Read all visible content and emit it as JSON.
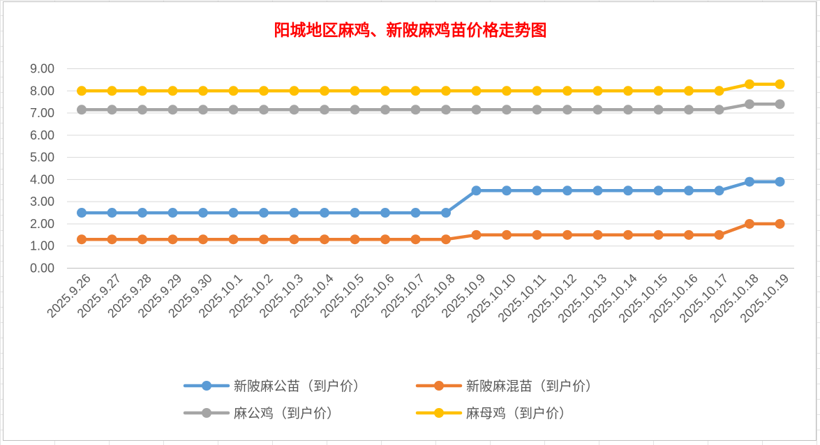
{
  "chart_data": {
    "type": "line",
    "title": "阳城地区麻鸡、新陂麻鸡苗价格走势图",
    "title_color": "#ff0000",
    "categories": [
      "2025.9.26",
      "2025.9.27",
      "2025.9.28",
      "2025.9.29",
      "2025.9.30",
      "2025.10.1",
      "2025.10.2",
      "2025.10.3",
      "2025.10.4",
      "2025.10.5",
      "2025.10.6",
      "2025.10.7",
      "2025.10.8",
      "2025.10.9",
      "2025.10.10",
      "2025.10.11",
      "2025.10.12",
      "2025.10.13",
      "2025.10.14",
      "2025.10.15",
      "2025.10.16",
      "2025.10.17",
      "2025.10.18",
      "2025.10.19"
    ],
    "series": [
      {
        "name": "新陂麻公苗（到户价）",
        "color": "#5b9bd5",
        "values": [
          2.5,
          2.5,
          2.5,
          2.5,
          2.5,
          2.5,
          2.5,
          2.5,
          2.5,
          2.5,
          2.5,
          2.5,
          2.5,
          3.5,
          3.5,
          3.5,
          3.5,
          3.5,
          3.5,
          3.5,
          3.5,
          3.5,
          3.9,
          3.9
        ]
      },
      {
        "name": "新陂麻混苗（到户价）",
        "color": "#ed7d31",
        "values": [
          1.3,
          1.3,
          1.3,
          1.3,
          1.3,
          1.3,
          1.3,
          1.3,
          1.3,
          1.3,
          1.3,
          1.3,
          1.3,
          1.5,
          1.5,
          1.5,
          1.5,
          1.5,
          1.5,
          1.5,
          1.5,
          1.5,
          2.0,
          2.0
        ]
      },
      {
        "name": "麻公鸡（到户价）",
        "color": "#a5a5a5",
        "values": [
          7.15,
          7.15,
          7.15,
          7.15,
          7.15,
          7.15,
          7.15,
          7.15,
          7.15,
          7.15,
          7.15,
          7.15,
          7.15,
          7.15,
          7.15,
          7.15,
          7.15,
          7.15,
          7.15,
          7.15,
          7.15,
          7.15,
          7.4,
          7.4
        ]
      },
      {
        "name": "麻母鸡（到户价）",
        "color": "#ffc000",
        "values": [
          8.0,
          8.0,
          8.0,
          8.0,
          8.0,
          8.0,
          8.0,
          8.0,
          8.0,
          8.0,
          8.0,
          8.0,
          8.0,
          8.0,
          8.0,
          8.0,
          8.0,
          8.0,
          8.0,
          8.0,
          8.0,
          8.0,
          8.3,
          8.3
        ]
      }
    ],
    "y_ticks": [
      "0.00",
      "1.00",
      "2.00",
      "3.00",
      "4.00",
      "5.00",
      "6.00",
      "7.00",
      "8.00",
      "9.00"
    ],
    "ylim": [
      0,
      9
    ],
    "grid": true,
    "legend_position": "bottom"
  }
}
